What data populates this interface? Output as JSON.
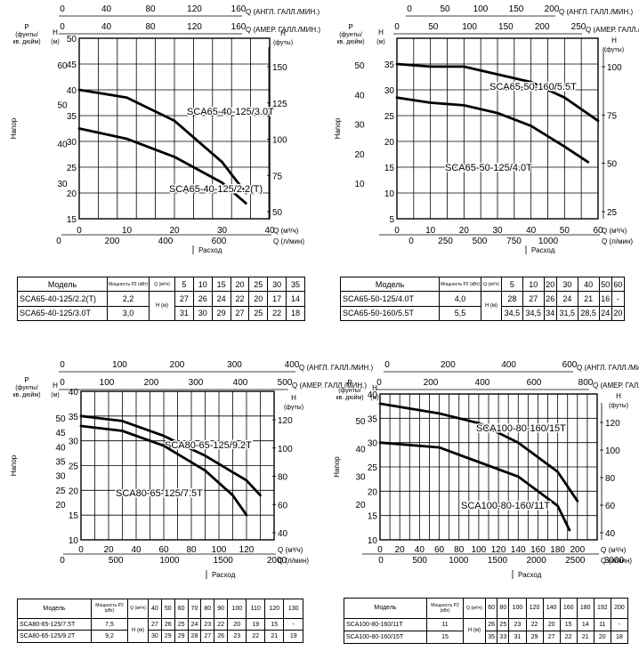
{
  "chart_data": [
    {
      "type": "line",
      "axis_labels": {
        "ukgal": "Q (АНГЛ. ГАЛЛ./МИН.)",
        "usgal": "Q (АМЕР. ГАЛЛ./МИН.)",
        "p": "P",
        "p_unit1": "(фунты/",
        "p_unit2": "кв. дюйм)",
        "h": "H",
        "h_unit": "(м)",
        "ft": "H",
        "ft_unit": "(футы)",
        "head": "Напор",
        "qm3": "Q (м³/ч)",
        "ql": "Q (л/мин)",
        "flow": "Расход"
      },
      "xlim": [
        0,
        40
      ],
      "ylim": [
        15,
        50
      ],
      "x_ticks": [
        "0",
        "10",
        "20",
        "30",
        "40"
      ],
      "y_ticks": [
        "15",
        "20",
        "25",
        "30",
        "35",
        "40",
        "45",
        "50"
      ],
      "ukgal_ticks": [
        "0",
        "40",
        "80",
        "120",
        "160"
      ],
      "usgal_ticks": [
        "0",
        "40",
        "80",
        "120",
        "160"
      ],
      "lmin_ticks": [
        "0",
        "200",
        "400",
        "600"
      ],
      "psi_ticks": [
        "30",
        "40",
        "50",
        "60"
      ],
      "ft_ticks": [
        "50",
        "75",
        "100",
        "125",
        "150"
      ],
      "series": [
        {
          "name": "SCA65-40-125/3.0T",
          "x": [
            0,
            10,
            20,
            30,
            35
          ],
          "y": [
            40,
            38.5,
            34,
            26,
            20
          ]
        },
        {
          "name": "SCA65-40-125/2.2(T)",
          "x": [
            0,
            10,
            20,
            30,
            35
          ],
          "y": [
            32.5,
            30.5,
            27,
            22,
            18
          ]
        }
      ],
      "table": {
        "header_model": "Модель",
        "header_power": "Мощность P2 (кВт)",
        "header_q": "Q (м³/ч)",
        "header_h": "H (м)",
        "q": [
          "5",
          "10",
          "15",
          "20",
          "25",
          "30",
          "35"
        ],
        "rows": [
          {
            "model": "SCA65-40-125/2.2(T)",
            "power": "2,2",
            "h": [
              "27",
              "26",
              "24",
              "22",
              "20",
              "17",
              "14"
            ]
          },
          {
            "model": "SCA65-40-125/3.0T",
            "power": "3,0",
            "h": [
              "31",
              "30",
              "29",
              "27",
              "25",
              "22",
              "18"
            ]
          }
        ]
      }
    },
    {
      "type": "line",
      "axis_labels": {
        "ukgal": "Q (АНГЛ. ГАЛЛ./МИН.)",
        "usgal": "Q (АМЕР. ГАЛЛ./МИН.)",
        "p": "P",
        "p_unit1": "(фунты/",
        "p_unit2": "кв. дюйм)",
        "h": "H",
        "h_unit": "(м)",
        "ft": "H",
        "ft_unit": "(футы)",
        "head": "Напор",
        "qm3": "Q (м³/ч)",
        "ql": "Q (л/мин)",
        "flow": "Расход"
      },
      "xlim": [
        0,
        60
      ],
      "ylim": [
        5,
        40
      ],
      "x_ticks": [
        "0",
        "10",
        "20",
        "30",
        "40",
        "50",
        "60"
      ],
      "y_ticks": [
        "5",
        "10",
        "15",
        "20",
        "25",
        "30",
        "35"
      ],
      "ukgal_ticks": [
        "0",
        "50",
        "100",
        "150",
        "200"
      ],
      "usgal_ticks": [
        "0",
        "50",
        "100",
        "150",
        "200",
        "250"
      ],
      "lmin_ticks": [
        "0",
        "250",
        "500",
        "750",
        "1000"
      ],
      "psi_ticks": [
        "10",
        "20",
        "30",
        "40",
        "50"
      ],
      "ft_ticks": [
        "25",
        "50",
        "75",
        "100"
      ],
      "series": [
        {
          "name": "SCA65-50-160/5.5T",
          "x": [
            0,
            10,
            20,
            30,
            40,
            50,
            60
          ],
          "y": [
            35,
            34.5,
            34.5,
            33,
            31.5,
            28.5,
            24
          ]
        },
        {
          "name": "SCA65-50-125/4.0T",
          "x": [
            0,
            10,
            20,
            30,
            40,
            50,
            57
          ],
          "y": [
            28.5,
            27.5,
            27,
            25.5,
            23,
            19,
            16
          ]
        }
      ],
      "table": {
        "header_model": "Модель",
        "header_power": "Мощность P2 (кВт)",
        "header_q": "Q (м³/ч)",
        "header_h": "H (м)",
        "q": [
          "5",
          "10",
          "20",
          "30",
          "40",
          "50",
          "60"
        ],
        "rows": [
          {
            "model": "SCA65-50-125/4.0T",
            "power": "4,0",
            "h": [
              "28",
              "27",
              "26",
              "24",
              "21",
              "16",
              "-"
            ]
          },
          {
            "model": "SCA65-50-160/5.5T",
            "power": "5,5",
            "h": [
              "34,5",
              "34,5",
              "34",
              "31,5",
              "28,5",
              "24",
              "20"
            ]
          }
        ]
      }
    },
    {
      "type": "line",
      "axis_labels": {
        "ukgal": "Q (АНГЛ. ГАЛЛ./МИН.)",
        "usgal": "Q (АМЕР. ГАЛЛ./МИН.)",
        "p": "P",
        "p_unit1": "(фунты/",
        "p_unit2": "кв. дюйм)",
        "h": "H",
        "h_unit": "(м)",
        "ft": "H",
        "ft_unit": "(футы)",
        "head": "Напор",
        "qm3": "Q (м³/ч)",
        "ql": "Q (л/мин)",
        "flow": "Расход"
      },
      "xlim": [
        0,
        140
      ],
      "ylim": [
        10,
        40
      ],
      "x_ticks": [
        "0",
        "20",
        "40",
        "60",
        "80",
        "100",
        "120"
      ],
      "y_ticks": [
        "10",
        "15",
        "20",
        "25",
        "30",
        "35",
        "40"
      ],
      "ukgal_ticks": [
        "0",
        "100",
        "200",
        "300",
        "400"
      ],
      "usgal_ticks": [
        "0",
        "100",
        "200",
        "300",
        "400",
        "500"
      ],
      "lmin_ticks": [
        "0",
        "500",
        "1000",
        "1500",
        "2000"
      ],
      "psi_ticks": [
        "20",
        "25",
        "30",
        "35",
        "40",
        "45",
        "50"
      ],
      "ft_ticks": [
        "40",
        "60",
        "80",
        "100",
        "120"
      ],
      "series": [
        {
          "name": "SCA80-65-125/9.2T",
          "x": [
            0,
            30,
            60,
            90,
            120,
            130
          ],
          "y": [
            35,
            34,
            31,
            27,
            22,
            19
          ]
        },
        {
          "name": "SCA80-65-125/7.5T",
          "x": [
            0,
            30,
            60,
            90,
            110,
            120
          ],
          "y": [
            33,
            32,
            29,
            24,
            19,
            15
          ]
        }
      ],
      "table": {
        "header_model": "Модель",
        "header_power": "Мощность P2 (кВт)",
        "header_q": "Q (м³/ч)",
        "header_h": "H (м)",
        "q": [
          "40",
          "50",
          "60",
          "70",
          "80",
          "90",
          "100",
          "110",
          "120",
          "130"
        ],
        "rows": [
          {
            "model": "SCA80-65-125/7.5T",
            "power": "7,5",
            "h": [
              "27",
              "26",
              "25",
              "24",
              "23",
              "22",
              "20",
              "19",
              "15",
              "-"
            ]
          },
          {
            "model": "SCA80-65-125/9.2T",
            "power": "9,2",
            "h": [
              "30",
              "29",
              "29",
              "28",
              "27",
              "26",
              "23",
              "22",
              "21",
              "19"
            ]
          }
        ]
      }
    },
    {
      "type": "line",
      "axis_labels": {
        "ukgal": "Q (АНГЛ. ГАЛЛ./МИН.)",
        "usgal": "Q (АМЕР. ГАЛЛ./МИН.)",
        "p": "P",
        "p_unit1": "(фунты/",
        "p_unit2": "кв. дюйм)",
        "h": "H",
        "h_unit": "(м)",
        "ft": "H",
        "ft_unit": "(футы)",
        "head": "Напор",
        "qm3": "Q (м³/ч)",
        "ql": "Q (л/мин)",
        "flow": "Расход"
      },
      "xlim": [
        0,
        220
      ],
      "ylim": [
        10,
        40
      ],
      "x_ticks": [
        "0",
        "20",
        "40",
        "60",
        "80",
        "100",
        "120",
        "140",
        "160",
        "180",
        "200"
      ],
      "y_ticks": [
        "10",
        "15",
        "20",
        "25",
        "30",
        "35",
        "40"
      ],
      "ukgal_ticks": [
        "0",
        "200",
        "400",
        "600"
      ],
      "usgal_ticks": [
        "0",
        "200",
        "400",
        "600",
        "800"
      ],
      "lmin_ticks": [
        "0",
        "500",
        "1000",
        "1500",
        "2000",
        "2500",
        "3000"
      ],
      "psi_ticks": [
        "20",
        "30",
        "40",
        "50"
      ],
      "ft_ticks": [
        "40",
        "60",
        "80",
        "100",
        "120"
      ],
      "series": [
        {
          "name": "SCA100-80-160/15T",
          "x": [
            0,
            60,
            100,
            140,
            180,
            200
          ],
          "y": [
            38,
            36,
            34,
            30,
            24,
            18
          ]
        },
        {
          "name": "SCA100-80-160/11T",
          "x": [
            0,
            60,
            100,
            140,
            180,
            192
          ],
          "y": [
            30,
            29,
            26,
            23,
            17,
            12
          ]
        }
      ],
      "table": {
        "header_model": "Модель",
        "header_power": "Мощность P2 (кВт)",
        "header_q": "Q (м³/ч)",
        "header_h": "H (м)",
        "q": [
          "60",
          "80",
          "100",
          "120",
          "140",
          "160",
          "180",
          "192",
          "200"
        ],
        "rows": [
          {
            "model": "SCA100-80-160/11T",
            "power": "11",
            "h": [
              "26",
              "25",
              "23",
              "22",
              "20",
              "15",
              "14",
              "11",
              "-"
            ]
          },
          {
            "model": "SCA100-80-160/15T",
            "power": "15",
            "h": [
              "35",
              "33",
              "31",
              "29",
              "27",
              "22",
              "21",
              "20",
              "18"
            ]
          }
        ]
      }
    }
  ]
}
